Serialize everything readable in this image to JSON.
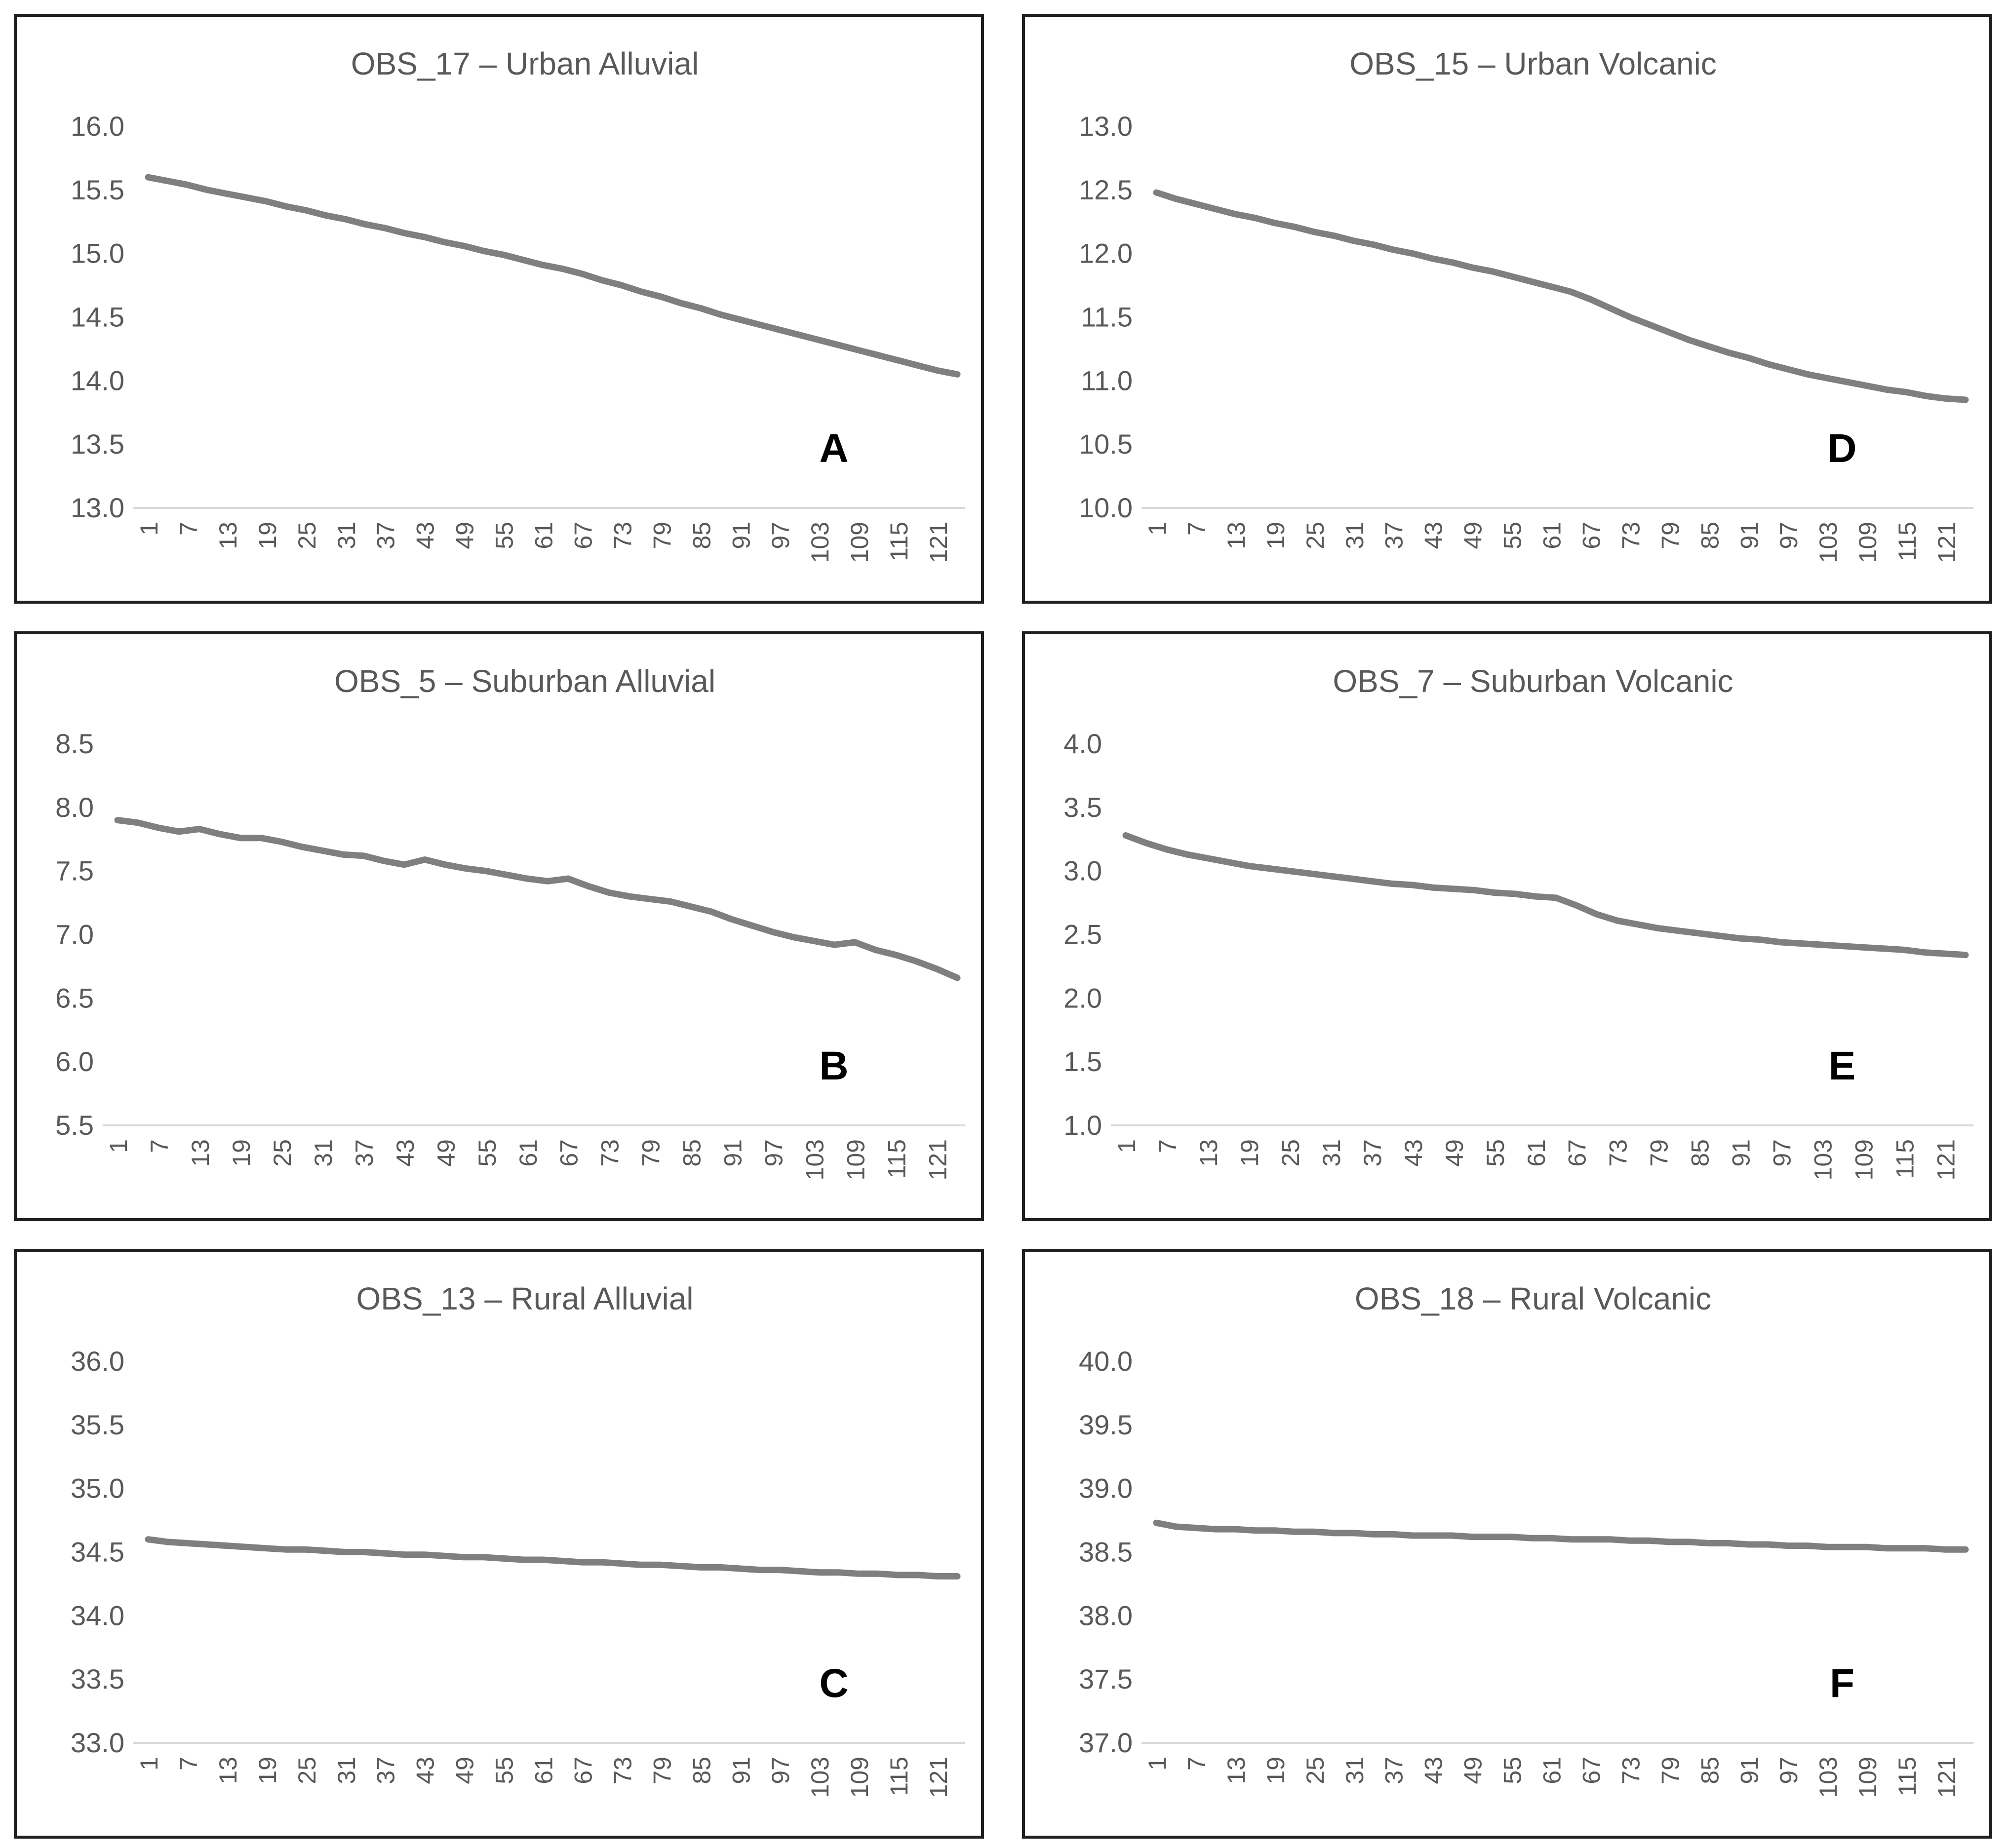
{
  "style": {
    "background_color": "#ffffff",
    "panel_border_color": "#1f1f1f",
    "line_color": "#7f7f7f",
    "text_color": "#595959",
    "letter_color": "#000000",
    "axis_line_color": "#d9d9d9"
  },
  "x_tick_labels": [
    "1",
    "7",
    "13",
    "19",
    "25",
    "31",
    "37",
    "43",
    "49",
    "55",
    "61",
    "67",
    "73",
    "79",
    "85",
    "91",
    "97",
    "103",
    "109",
    "115",
    "121"
  ],
  "chart_data": [
    {
      "id": "A",
      "type": "line",
      "title": "OBS_17 – Urban Alluvial",
      "panel_letter": "A",
      "legend": "none",
      "grid": "off",
      "ylim": [
        13.0,
        16.0
      ],
      "y_tick_labels": [
        "16.0",
        "15.5",
        "15.0",
        "14.5",
        "14.0",
        "13.5",
        "13.0"
      ],
      "x": [
        1,
        4,
        7,
        10,
        13,
        16,
        19,
        22,
        25,
        28,
        31,
        34,
        37,
        40,
        43,
        46,
        49,
        52,
        55,
        58,
        61,
        64,
        67,
        70,
        73,
        76,
        79,
        82,
        85,
        88,
        91,
        94,
        97,
        100,
        103,
        106,
        109,
        112,
        115,
        118,
        121,
        124
      ],
      "values": [
        15.6,
        15.57,
        15.54,
        15.5,
        15.47,
        15.44,
        15.41,
        15.37,
        15.34,
        15.3,
        15.27,
        15.23,
        15.2,
        15.16,
        15.13,
        15.09,
        15.06,
        15.02,
        14.99,
        14.95,
        14.91,
        14.88,
        14.84,
        14.79,
        14.75,
        14.7,
        14.66,
        14.61,
        14.57,
        14.52,
        14.48,
        14.44,
        14.4,
        14.36,
        14.32,
        14.28,
        14.24,
        14.2,
        14.16,
        14.12,
        14.08,
        14.05
      ]
    },
    {
      "id": "D",
      "type": "line",
      "title": "OBS_15 – Urban Volcanic",
      "panel_letter": "D",
      "legend": "none",
      "grid": "off",
      "ylim": [
        10.0,
        13.0
      ],
      "y_tick_labels": [
        "13.0",
        "12.5",
        "12.0",
        "11.5",
        "11.0",
        "10.5",
        "10.0"
      ],
      "x": [
        1,
        4,
        7,
        10,
        13,
        16,
        19,
        22,
        25,
        28,
        31,
        34,
        37,
        40,
        43,
        46,
        49,
        52,
        55,
        58,
        61,
        64,
        67,
        70,
        73,
        76,
        79,
        82,
        85,
        88,
        91,
        94,
        97,
        100,
        103,
        106,
        109,
        112,
        115,
        118,
        121,
        124
      ],
      "values": [
        12.48,
        12.43,
        12.39,
        12.35,
        12.31,
        12.28,
        12.24,
        12.21,
        12.17,
        12.14,
        12.1,
        12.07,
        12.03,
        12.0,
        11.96,
        11.93,
        11.89,
        11.86,
        11.82,
        11.78,
        11.74,
        11.7,
        11.64,
        11.57,
        11.5,
        11.44,
        11.38,
        11.32,
        11.27,
        11.22,
        11.18,
        11.13,
        11.09,
        11.05,
        11.02,
        10.99,
        10.96,
        10.93,
        10.91,
        10.88,
        10.86,
        10.85
      ]
    },
    {
      "id": "B",
      "type": "line",
      "title": "OBS_5 – Suburban Alluvial",
      "panel_letter": "B",
      "legend": "none",
      "grid": "off",
      "ylim": [
        5.5,
        8.5
      ],
      "y_tick_labels": [
        "8.5",
        "8.0",
        "7.5",
        "7.0",
        "6.5",
        "6.0",
        "5.5"
      ],
      "x": [
        1,
        4,
        7,
        10,
        13,
        16,
        19,
        22,
        25,
        28,
        31,
        34,
        37,
        40,
        43,
        46,
        49,
        52,
        55,
        58,
        61,
        64,
        67,
        70,
        73,
        76,
        79,
        82,
        85,
        88,
        91,
        94,
        97,
        100,
        103,
        106,
        109,
        112,
        115,
        118,
        121,
        124
      ],
      "values": [
        7.9,
        7.88,
        7.84,
        7.81,
        7.83,
        7.79,
        7.76,
        7.76,
        7.73,
        7.69,
        7.66,
        7.63,
        7.62,
        7.58,
        7.55,
        7.59,
        7.55,
        7.52,
        7.5,
        7.47,
        7.44,
        7.42,
        7.44,
        7.38,
        7.33,
        7.3,
        7.28,
        7.26,
        7.22,
        7.18,
        7.12,
        7.07,
        7.02,
        6.98,
        6.95,
        6.92,
        6.94,
        6.88,
        6.84,
        6.79,
        6.73,
        6.66
      ]
    },
    {
      "id": "E",
      "type": "line",
      "title": "OBS_7 – Suburban Volcanic",
      "panel_letter": "E",
      "legend": "none",
      "grid": "off",
      "ylim": [
        1.0,
        4.0
      ],
      "y_tick_labels": [
        "4.0",
        "3.5",
        "3.0",
        "2.5",
        "2.0",
        "1.5",
        "1.0"
      ],
      "x": [
        1,
        4,
        7,
        10,
        13,
        16,
        19,
        22,
        25,
        28,
        31,
        34,
        37,
        40,
        43,
        46,
        49,
        52,
        55,
        58,
        61,
        64,
        67,
        70,
        73,
        76,
        79,
        82,
        85,
        88,
        91,
        94,
        97,
        100,
        103,
        106,
        109,
        112,
        115,
        118,
        121,
        124
      ],
      "values": [
        3.28,
        3.22,
        3.17,
        3.13,
        3.1,
        3.07,
        3.04,
        3.02,
        3.0,
        2.98,
        2.96,
        2.94,
        2.92,
        2.9,
        2.89,
        2.87,
        2.86,
        2.85,
        2.83,
        2.82,
        2.8,
        2.79,
        2.73,
        2.66,
        2.61,
        2.58,
        2.55,
        2.53,
        2.51,
        2.49,
        2.47,
        2.46,
        2.44,
        2.43,
        2.42,
        2.41,
        2.4,
        2.39,
        2.38,
        2.36,
        2.35,
        2.34
      ]
    },
    {
      "id": "C",
      "type": "line",
      "title": "OBS_13 – Rural Alluvial",
      "panel_letter": "C",
      "legend": "none",
      "grid": "off",
      "ylim": [
        33.0,
        36.0
      ],
      "y_tick_labels": [
        "36.0",
        "35.5",
        "35.0",
        "34.5",
        "34.0",
        "33.5",
        "33.0"
      ],
      "x": [
        1,
        4,
        7,
        10,
        13,
        16,
        19,
        22,
        25,
        28,
        31,
        34,
        37,
        40,
        43,
        46,
        49,
        52,
        55,
        58,
        61,
        64,
        67,
        70,
        73,
        76,
        79,
        82,
        85,
        88,
        91,
        94,
        97,
        100,
        103,
        106,
        109,
        112,
        115,
        118,
        121,
        124
      ],
      "values": [
        34.6,
        34.58,
        34.57,
        34.56,
        34.55,
        34.54,
        34.53,
        34.52,
        34.52,
        34.51,
        34.5,
        34.5,
        34.49,
        34.48,
        34.48,
        34.47,
        34.46,
        34.46,
        34.45,
        34.44,
        34.44,
        34.43,
        34.42,
        34.42,
        34.41,
        34.4,
        34.4,
        34.39,
        34.38,
        34.38,
        34.37,
        34.36,
        34.36,
        34.35,
        34.34,
        34.34,
        34.33,
        34.33,
        34.32,
        34.32,
        34.31,
        34.31
      ]
    },
    {
      "id": "F",
      "type": "line",
      "title": "OBS_18 – Rural Volcanic",
      "panel_letter": "F",
      "legend": "none",
      "grid": "off",
      "ylim": [
        37.0,
        40.0
      ],
      "y_tick_labels": [
        "40.0",
        "39.5",
        "39.0",
        "38.5",
        "38.0",
        "37.5",
        "37.0"
      ],
      "x": [
        1,
        4,
        7,
        10,
        13,
        16,
        19,
        22,
        25,
        28,
        31,
        34,
        37,
        40,
        43,
        46,
        49,
        52,
        55,
        58,
        61,
        64,
        67,
        70,
        73,
        76,
        79,
        82,
        85,
        88,
        91,
        94,
        97,
        100,
        103,
        106,
        109,
        112,
        115,
        118,
        121,
        124
      ],
      "values": [
        38.73,
        38.7,
        38.69,
        38.68,
        38.68,
        38.67,
        38.67,
        38.66,
        38.66,
        38.65,
        38.65,
        38.64,
        38.64,
        38.63,
        38.63,
        38.63,
        38.62,
        38.62,
        38.62,
        38.61,
        38.61,
        38.6,
        38.6,
        38.6,
        38.59,
        38.59,
        38.58,
        38.58,
        38.57,
        38.57,
        38.56,
        38.56,
        38.55,
        38.55,
        38.54,
        38.54,
        38.54,
        38.53,
        38.53,
        38.53,
        38.52,
        38.52
      ]
    }
  ]
}
